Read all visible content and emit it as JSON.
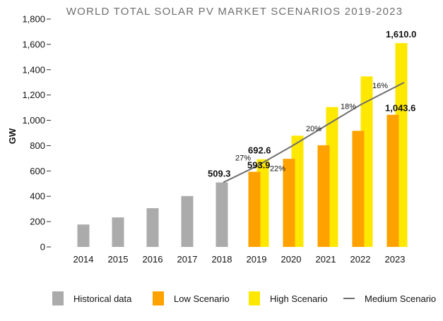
{
  "chart_data": {
    "type": "bar",
    "title": "WORLD TOTAL SOLAR PV MARKET SCENARIOS 2019-2023",
    "ylabel": "GW",
    "ylim": [
      0,
      1800
    ],
    "yticks": [
      0,
      200,
      400,
      600,
      800,
      1000,
      1200,
      1400,
      1600,
      1800
    ],
    "ytick_labels": [
      "0",
      "200",
      "400",
      "600",
      "800",
      "1,000",
      "1,200",
      "1,400",
      "1,600",
      "1,800"
    ],
    "categories": [
      "2014",
      "2015",
      "2016",
      "2017",
      "2018",
      "2019",
      "2020",
      "2021",
      "2022",
      "2023"
    ],
    "legend_position": "bottom",
    "series": [
      {
        "name": "Historical data",
        "color": "#ababab",
        "values": [
          177,
          233,
          306,
          402,
          509.3,
          null,
          null,
          null,
          null,
          null
        ]
      },
      {
        "name": "Low Scenario",
        "color": "#ffa200",
        "values": [
          null,
          null,
          null,
          null,
          null,
          593.9,
          696,
          803,
          917,
          1043.6
        ]
      },
      {
        "name": "High Scenario",
        "color": "#ffe800",
        "values": [
          null,
          null,
          null,
          null,
          null,
          692.6,
          879,
          1105,
          1347,
          1610.0
        ]
      },
      {
        "name": "Medium Scenario",
        "type": "line",
        "color": "#6e6e6e",
        "values": [
          null,
          null,
          null,
          null,
          509.3,
          637,
          793,
          958,
          1122,
          1299
        ]
      }
    ],
    "data_labels": [
      {
        "category": "2018",
        "series": "Historical data",
        "text": "509.3"
      },
      {
        "category": "2019",
        "series": "High Scenario",
        "text": "692.6"
      },
      {
        "category": "2019",
        "series": "Low Scenario",
        "text": "593.9"
      },
      {
        "category": "2023",
        "series": "High Scenario",
        "text": "1,610.0"
      },
      {
        "category": "2023",
        "series": "Low Scenario",
        "text": "1,043.6"
      }
    ],
    "growth_labels": [
      {
        "category": "2019",
        "text": "27%"
      },
      {
        "category": "2020",
        "text": "22%"
      },
      {
        "category": "2021",
        "text": "20%"
      },
      {
        "category": "2022",
        "text": "18%"
      },
      {
        "category": "2023",
        "text": "16%"
      }
    ]
  }
}
